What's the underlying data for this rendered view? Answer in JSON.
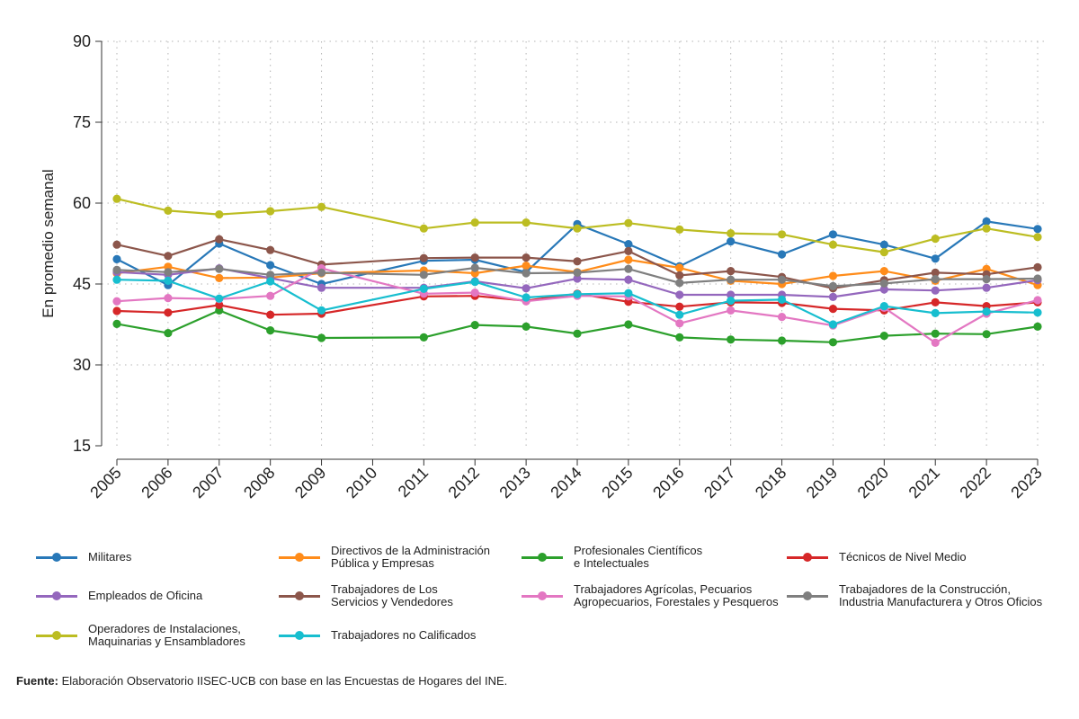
{
  "chart_data": {
    "type": "line",
    "title": "",
    "xlabel": "",
    "ylabel": "En promedio semanal",
    "ylim": [
      15,
      90
    ],
    "yticks": [
      15,
      30,
      45,
      60,
      75,
      90
    ],
    "grid": true,
    "categories": [
      "2005",
      "2006",
      "2007",
      "2008",
      "2009",
      "2010",
      "2011",
      "2012",
      "2013",
      "2014",
      "2015",
      "2016",
      "2017",
      "2018",
      "2019",
      "2020",
      "2021",
      "2022",
      "2023"
    ],
    "series": [
      {
        "name": "Militares",
        "color": "#2878b8",
        "values": [
          49.6,
          44.8,
          52.5,
          48.5,
          45.0,
          null,
          49.3,
          49.5,
          47.2,
          56.1,
          52.4,
          48.3,
          52.9,
          50.5,
          54.2,
          52.3,
          49.7,
          56.6,
          55.2
        ]
      },
      {
        "name": "Directivos de la Administración\nPública y Empresas",
        "color": "#ff8c1a",
        "values": [
          47.0,
          48.2,
          46.1,
          46.2,
          47.0,
          null,
          47.5,
          47.0,
          48.4,
          47.2,
          49.5,
          48.0,
          45.6,
          45.0,
          46.5,
          47.4,
          45.6,
          47.8,
          44.8
        ]
      },
      {
        "name": "Profesionales Científicos\ne Intelectuales",
        "color": "#2ca02c",
        "values": [
          37.6,
          35.9,
          40.1,
          36.4,
          35.0,
          null,
          35.1,
          37.4,
          37.1,
          35.8,
          37.5,
          35.1,
          34.7,
          34.5,
          34.2,
          35.4,
          35.8,
          35.7,
          37.1
        ]
      },
      {
        "name": "Técnicos de Nivel Medio",
        "color": "#d62728",
        "values": [
          40.0,
          39.7,
          41.1,
          39.3,
          39.5,
          null,
          42.7,
          42.8,
          41.9,
          43.2,
          41.7,
          40.8,
          41.6,
          41.5,
          40.4,
          40.1,
          41.6,
          40.9,
          41.6
        ]
      },
      {
        "name": "Empleados de Oficina",
        "color": "#9467bd",
        "values": [
          47.2,
          46.7,
          47.9,
          46.1,
          44.3,
          null,
          44.3,
          45.5,
          44.2,
          46.0,
          45.8,
          43.0,
          43.0,
          43.0,
          42.6,
          44.0,
          43.8,
          44.3,
          45.7
        ]
      },
      {
        "name": "Trabajadores de Los\nServicios y Vendedores",
        "color": "#8c564b",
        "values": [
          52.3,
          50.2,
          53.3,
          51.3,
          48.6,
          null,
          49.8,
          49.9,
          49.9,
          49.2,
          51.1,
          46.6,
          47.4,
          46.3,
          44.2,
          45.7,
          47.1,
          46.8,
          48.1
        ]
      },
      {
        "name": "Trabajadores Agrícolas, Pecuarios\nAgropecuarios, Forestales y Pesqueros",
        "color": "#e377c2",
        "values": [
          41.8,
          42.4,
          42.2,
          42.8,
          47.9,
          null,
          43.2,
          43.4,
          41.8,
          42.8,
          42.7,
          37.7,
          40.1,
          38.9,
          37.3,
          40.6,
          34.1,
          39.5,
          42.0
        ]
      },
      {
        "name": "Trabajadores de la Construcción,\nIndustria Manufacturera y Otros Oficios",
        "color": "#7f7f7f",
        "values": [
          47.6,
          47.2,
          47.8,
          46.7,
          47.1,
          null,
          46.7,
          48.0,
          47.0,
          47.1,
          47.8,
          45.2,
          45.8,
          45.8,
          44.6,
          45.1,
          45.9,
          45.9,
          46.0
        ]
      },
      {
        "name": "Operadores de Instalaciones,\nMaquinarias y Ensambladores",
        "color": "#bcbd22",
        "values": [
          60.8,
          58.6,
          57.9,
          58.5,
          59.3,
          null,
          55.3,
          56.4,
          56.4,
          55.3,
          56.3,
          55.1,
          54.4,
          54.2,
          52.3,
          50.9,
          53.4,
          55.3,
          53.7
        ]
      },
      {
        "name": "Trabajadores no Calificados",
        "color": "#17becf",
        "values": [
          45.8,
          45.6,
          42.3,
          45.5,
          40.1,
          null,
          44.1,
          45.4,
          42.5,
          43.1,
          43.3,
          39.3,
          41.9,
          42.1,
          37.5,
          40.9,
          39.6,
          39.9,
          39.7
        ]
      }
    ]
  },
  "source": {
    "label": "Fuente:",
    "text": " Elaboración Observatorio IISEC-UCB con base en las Encuestas de Hogares del INE."
  }
}
